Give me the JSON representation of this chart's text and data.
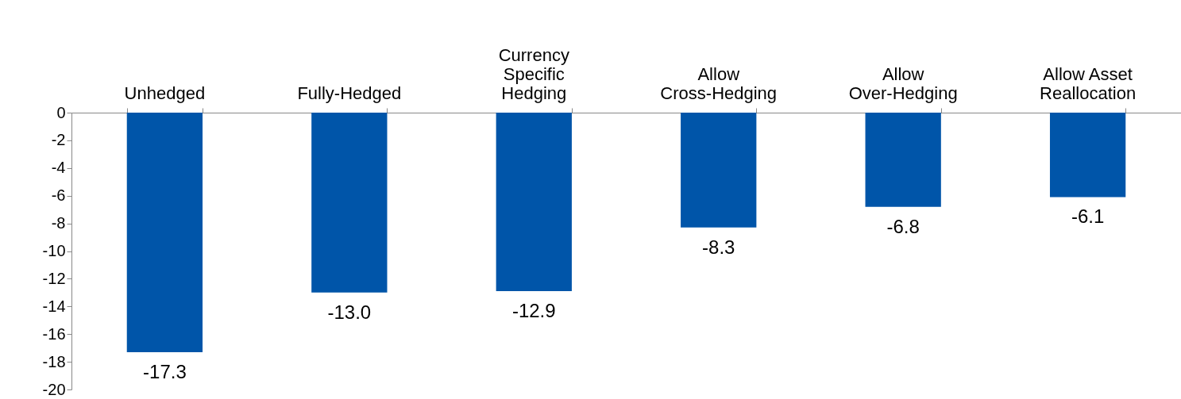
{
  "chart_data": {
    "type": "bar",
    "categories": [
      "Unhedged",
      "Fully-Hedged",
      "Currency\nSpecific\nHedging",
      "Allow\nCross-Hedging",
      "Allow\nOver-Hedging",
      "Allow Asset\nReallocation"
    ],
    "values": [
      -17.3,
      -13.0,
      -12.9,
      -8.3,
      -6.8,
      -6.1
    ],
    "value_labels": [
      "-17.3",
      "-13.0",
      "-12.9",
      "-8.3",
      "-6.8",
      "-6.1"
    ],
    "color": "#0055a9",
    "ylim": [
      -20,
      0
    ],
    "yticks": [
      -20,
      -18,
      -16,
      -14,
      -12,
      -10,
      -8,
      -6,
      -4,
      -2,
      0
    ],
    "grid": false
  }
}
